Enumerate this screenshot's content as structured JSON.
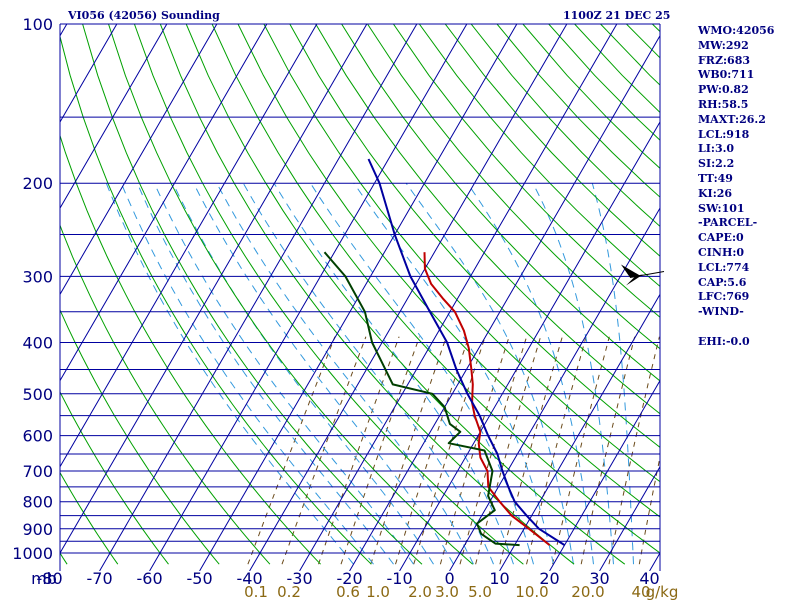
{
  "header": {
    "title": "VI056 (42056) Sounding",
    "time": "1100Z 21 DEC 25"
  },
  "indices": [
    {
      "label": "WMO",
      "value": "42056"
    },
    {
      "label": "MW",
      "value": "292"
    },
    {
      "label": "FRZ",
      "value": "683"
    },
    {
      "label": "WB0",
      "value": "711"
    },
    {
      "label": "PW",
      "value": "0.82"
    },
    {
      "label": "RH",
      "value": "58.5"
    },
    {
      "label": "MAXT",
      "value": "26.2"
    },
    {
      "label": "LCL",
      "value": "918"
    },
    {
      "label": "LI",
      "value": "3.0"
    },
    {
      "label": "SI",
      "value": "2.2"
    },
    {
      "label": "TT",
      "value": "49"
    },
    {
      "label": "KI",
      "value": "26"
    },
    {
      "label": "SW",
      "value": "101"
    },
    {
      "heading": "-PARCEL-"
    },
    {
      "label": "CAPE",
      "value": "0"
    },
    {
      "label": "CINH",
      "value": "0"
    },
    {
      "label": "LCL",
      "value": "774"
    },
    {
      "label": "CAP",
      "value": "5.6"
    },
    {
      "label": "LFC",
      "value": "769"
    },
    {
      "heading": "-WIND-"
    },
    {
      "blank": true
    },
    {
      "label": "EHI",
      "value": "-0.0"
    }
  ],
  "chart_data": {
    "type": "line",
    "diagram": "skew-T log-P",
    "yscale": "log",
    "ylim": [
      1000,
      100
    ],
    "xlim": [
      -80,
      40
    ],
    "y_unit": "mb",
    "y_ticks": [
      100,
      200,
      300,
      400,
      500,
      600,
      700,
      800,
      900,
      1000
    ],
    "y_tick_labels": [
      "100",
      "200",
      "300",
      "400",
      "500",
      "600",
      "700",
      "800",
      "900",
      "1000"
    ],
    "isobars": [
      100,
      150,
      200,
      250,
      300,
      350,
      400,
      450,
      500,
      550,
      600,
      650,
      700,
      750,
      800,
      850,
      900,
      950,
      1000
    ],
    "x_tick_labels": [
      "mb",
      "-80",
      "-70",
      "-60",
      "-50",
      "-40",
      "-30",
      "-20",
      "-10",
      "0",
      "10",
      "20",
      "30",
      "40"
    ],
    "x_ticks": [
      -80,
      -70,
      -60,
      -50,
      -40,
      -30,
      -20,
      -10,
      0,
      10,
      20,
      30,
      40
    ],
    "mixing_ratio_labels": [
      "0.1",
      "0.2",
      "0.6",
      "1.0",
      "2.0",
      "3.0",
      "5.0",
      "10.0",
      "20.0",
      "40",
      "g/kg"
    ],
    "series": [
      {
        "color": "#c00000",
        "points": [
          [
            966,
            17
          ],
          [
            900,
            11
          ],
          [
            850,
            6
          ],
          [
            800,
            2
          ],
          [
            750,
            -2
          ],
          [
            700,
            -4
          ],
          [
            660,
            -7
          ],
          [
            620,
            -9
          ],
          [
            590,
            -10
          ],
          [
            550,
            -13
          ],
          [
            520,
            -15
          ],
          [
            500,
            -16
          ],
          [
            480,
            -17
          ],
          [
            450,
            -19
          ],
          [
            410,
            -22
          ],
          [
            380,
            -25
          ],
          [
            350,
            -29
          ],
          [
            330,
            -33
          ],
          [
            310,
            -37
          ],
          [
            290,
            -40
          ],
          [
            270,
            -42
          ]
        ]
      },
      {
        "color": "#004000",
        "points": [
          [
            966,
            11
          ],
          [
            960,
            6
          ],
          [
            920,
            2
          ],
          [
            880,
            0
          ],
          [
            830,
            2
          ],
          [
            780,
            -1
          ],
          [
            700,
            -3
          ],
          [
            640,
            -7
          ],
          [
            620,
            -15
          ],
          [
            590,
            -14
          ],
          [
            570,
            -17
          ],
          [
            530,
            -20
          ],
          [
            500,
            -24
          ],
          [
            480,
            -33
          ],
          [
            400,
            -42
          ],
          [
            350,
            -47
          ],
          [
            300,
            -55
          ],
          [
            270,
            -62
          ]
        ]
      },
      {
        "color": "#0000a0",
        "points": [
          [
            966,
            20
          ],
          [
            900,
            13
          ],
          [
            850,
            9
          ],
          [
            800,
            5
          ],
          [
            750,
            2
          ],
          [
            700,
            -1
          ],
          [
            650,
            -4
          ],
          [
            600,
            -8
          ],
          [
            550,
            -12
          ],
          [
            500,
            -17
          ],
          [
            450,
            -22
          ],
          [
            400,
            -27
          ],
          [
            350,
            -34
          ],
          [
            300,
            -42
          ],
          [
            250,
            -50
          ],
          [
            200,
            -59
          ],
          [
            180,
            -64
          ]
        ]
      }
    ],
    "grid": true
  }
}
